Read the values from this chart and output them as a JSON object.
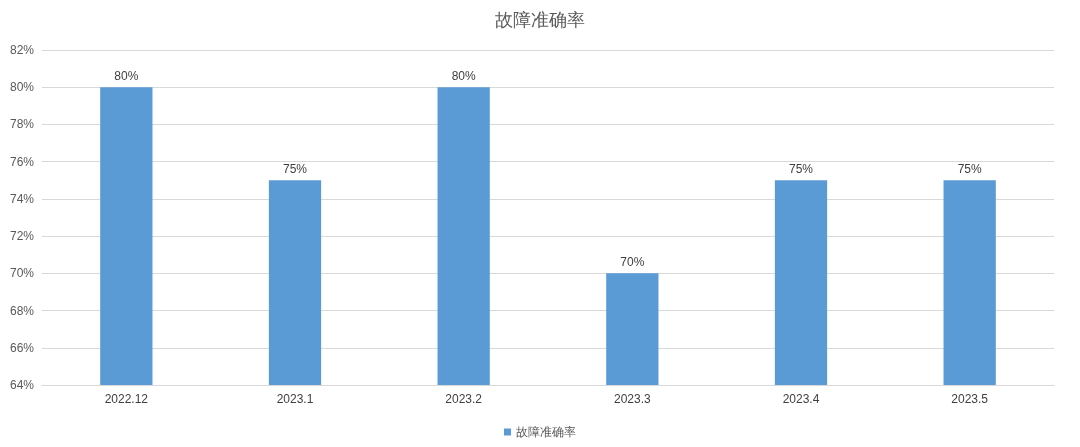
{
  "chart_data": {
    "type": "bar",
    "title": "故障准确率",
    "categories": [
      "2022.12",
      "2023.1",
      "2023.2",
      "2023.3",
      "2023.4",
      "2023.5"
    ],
    "series": [
      {
        "name": "故障准确率",
        "color": "#5b9bd5",
        "values": [
          80,
          75,
          80,
          70,
          75,
          75
        ],
        "value_labels": [
          "80%",
          "75%",
          "80%",
          "70%",
          "75%",
          "75%"
        ]
      }
    ],
    "ylim": [
      64,
      82
    ],
    "yticks": [
      {
        "value": 64,
        "label": "64%"
      },
      {
        "value": 66,
        "label": "66%"
      },
      {
        "value": 68,
        "label": "68%"
      },
      {
        "value": 70,
        "label": "70%"
      },
      {
        "value": 72,
        "label": "72%"
      },
      {
        "value": 74,
        "label": "74%"
      },
      {
        "value": 76,
        "label": "76%"
      },
      {
        "value": 78,
        "label": "78%"
      },
      {
        "value": 80,
        "label": "80%"
      },
      {
        "value": 82,
        "label": "82%"
      }
    ],
    "grid": "y",
    "legend": "bottom"
  }
}
